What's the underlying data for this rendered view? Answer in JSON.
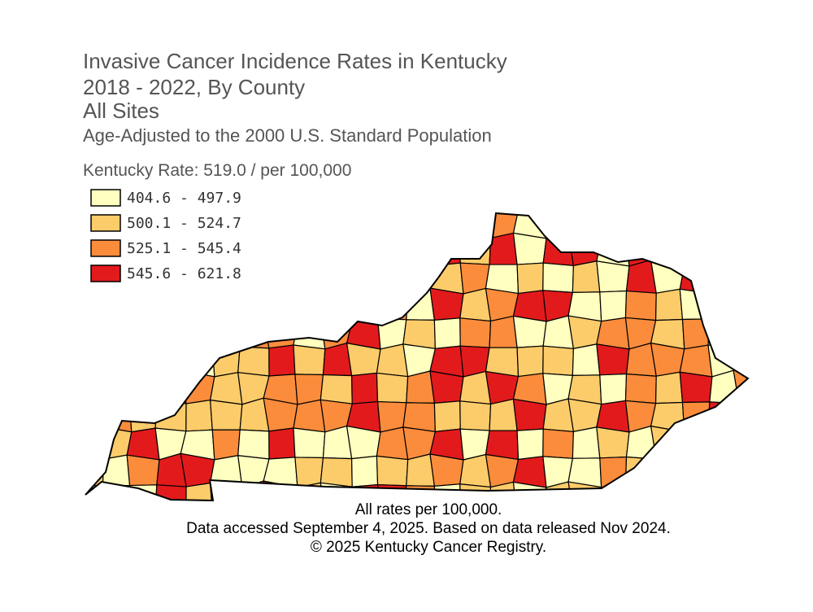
{
  "header": {
    "title": "Invasive Cancer Incidence Rates in Kentucky",
    "years": "2018 - 2022, By County",
    "site": "All Sites",
    "subtitle": "Age-Adjusted to the 2000 U.S. Standard Population",
    "state_rate": "Kentucky Rate: 519.0 / per 100,000"
  },
  "legend": {
    "items": [
      {
        "label": "404.6 - 497.9",
        "color": "#ffffbf"
      },
      {
        "label": "500.1 - 524.7",
        "color": "#fdcc6a"
      },
      {
        "label": "525.1 - 545.4",
        "color": "#fb8c3c"
      },
      {
        "label": "545.6 - 621.8",
        "color": "#e31a1c"
      }
    ]
  },
  "footer": {
    "lines": [
      "All rates per 100,000.",
      "Data accessed September 4, 2025. Based on data released Nov 2024.",
      "© 2025 Kentucky Cancer Registry."
    ]
  }
}
